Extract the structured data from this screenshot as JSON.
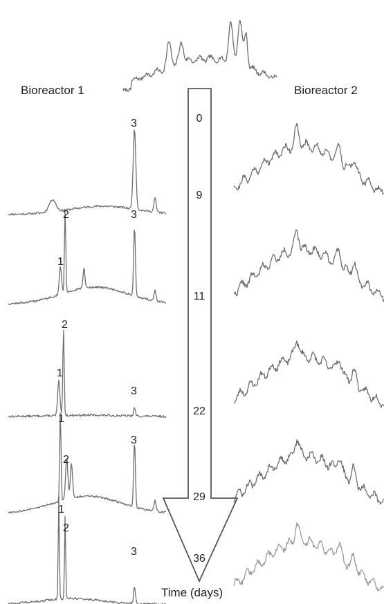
{
  "labels": {
    "left_title": "Bioreactor 1",
    "right_title": "Bioreactor 2",
    "axis": "Time (days)"
  },
  "timepoints": [
    "0",
    "9",
    "11",
    "22",
    "29",
    "36"
  ],
  "peak_labels": {
    "p1": "1",
    "p2": "2",
    "p3": "3"
  },
  "colors": {
    "trace": "#6e6e6e",
    "arrow": "#555555",
    "text": "#222222"
  }
}
